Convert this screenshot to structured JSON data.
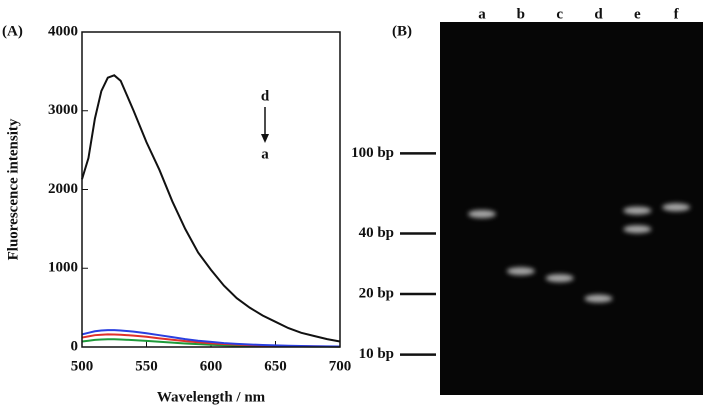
{
  "chart_data": [
    {
      "type": "line",
      "panel_label": "(A)",
      "ylabel": "Fluorescence intensity",
      "xlabel": "Wavelength / nm",
      "x": [
        500,
        505,
        510,
        515,
        520,
        525,
        530,
        540,
        550,
        560,
        570,
        580,
        590,
        600,
        610,
        620,
        630,
        640,
        650,
        660,
        670,
        680,
        690,
        700
      ],
      "series": [
        {
          "color": "#1f9a3a",
          "values": [
            70,
            80,
            90,
            95,
            98,
            98,
            95,
            88,
            78,
            66,
            55,
            45,
            36,
            29,
            23,
            18,
            14,
            11,
            9,
            7,
            6,
            5,
            4,
            3
          ]
        },
        {
          "color": "#e0302a",
          "values": [
            120,
            135,
            150,
            155,
            160,
            158,
            155,
            145,
            130,
            110,
            92,
            75,
            60,
            48,
            38,
            30,
            24,
            19,
            15,
            12,
            10,
            8,
            6,
            5
          ]
        },
        {
          "color": "#2a3fe0",
          "values": [
            160,
            180,
            200,
            210,
            215,
            215,
            210,
            195,
            175,
            150,
            125,
            100,
            80,
            65,
            50,
            40,
            32,
            25,
            20,
            16,
            13,
            10,
            8,
            6
          ]
        },
        {
          "color": "#111111",
          "values": [
            2130,
            2400,
            2900,
            3250,
            3420,
            3450,
            3380,
            3000,
            2600,
            2250,
            1850,
            1500,
            1200,
            980,
            780,
            620,
            500,
            400,
            320,
            240,
            180,
            140,
            100,
            70
          ]
        }
      ],
      "annotations": [
        "d",
        "a"
      ],
      "xlim": [
        500,
        700
      ],
      "xticks": [
        500,
        550,
        600,
        650,
        700
      ],
      "ylim": [
        0,
        4000
      ],
      "yticks": [
        0,
        1000,
        2000,
        3000,
        4000
      ]
    },
    {
      "type": "gel",
      "panel_label": "(B)",
      "categories": [
        "a",
        "b",
        "c",
        "d",
        "e",
        "f"
      ],
      "values": [
        [
          50
        ],
        [
          26
        ],
        [
          24
        ],
        [
          19
        ],
        [
          52,
          42
        ],
        [
          54
        ]
      ],
      "log_scale": true,
      "ylim": [
        6.3,
        450
      ],
      "yticks": [
        {
          "value": 100,
          "label": "100 bp"
        },
        {
          "value": 40,
          "label": "40 bp"
        },
        {
          "value": 20,
          "label": "20 bp"
        },
        {
          "value": 10,
          "label": "10 bp"
        }
      ]
    }
  ]
}
